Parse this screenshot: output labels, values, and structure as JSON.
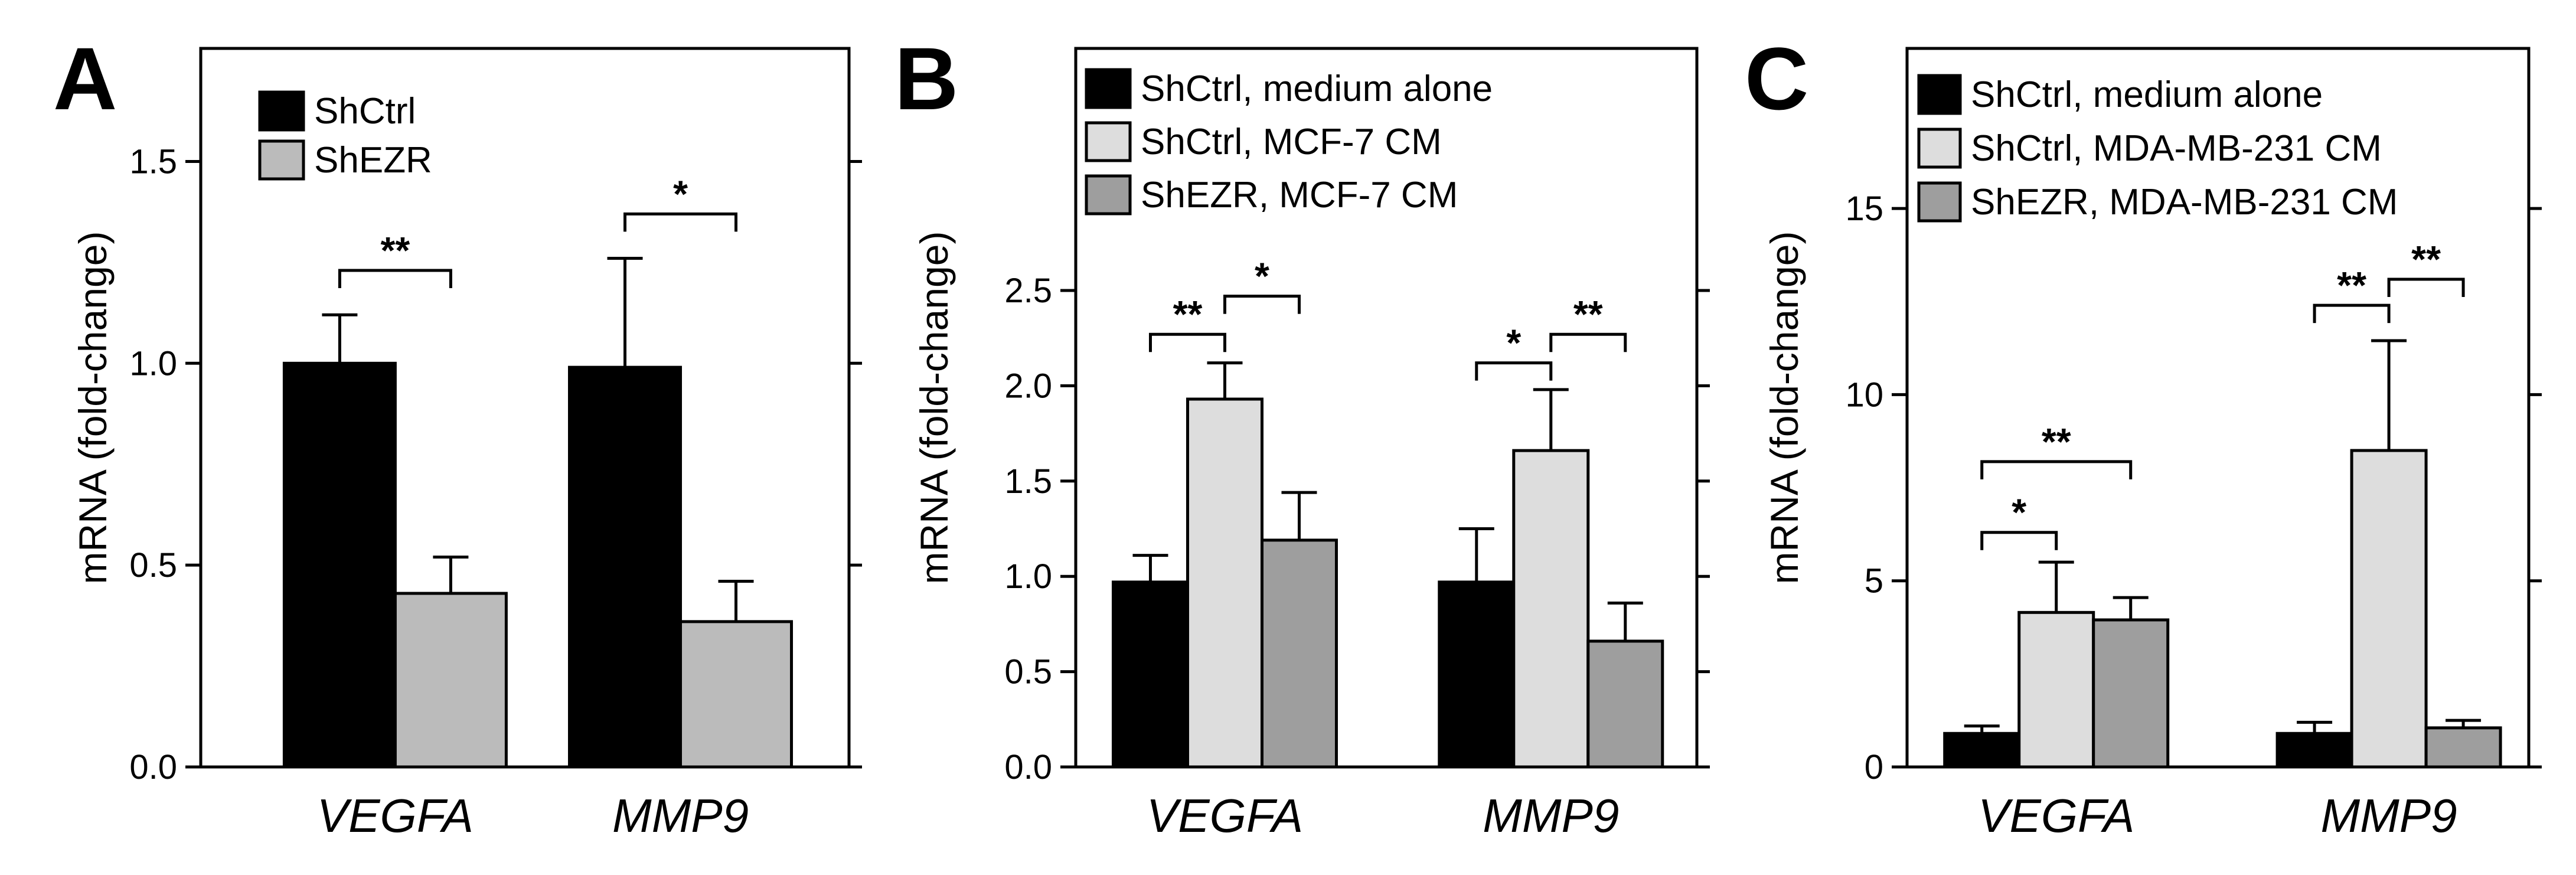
{
  "chart_data": [
    {
      "panel": "A",
      "type": "bar",
      "ylabel": "mRNA (fold-change)",
      "categories": [
        "VEGFA",
        "MMP9"
      ],
      "ylim": [
        0,
        1.78
      ],
      "yticks": [
        "0.0",
        "0.5",
        "1.0",
        "1.5"
      ],
      "legend_position": "top-left",
      "series": [
        {
          "name": "ShCtrl",
          "color": "#000000",
          "values": [
            1.0,
            0.99
          ],
          "errors": [
            0.12,
            0.27
          ]
        },
        {
          "name": "ShEZR",
          "color": "#bbbbbb",
          "values": [
            0.43,
            0.36
          ],
          "errors": [
            0.09,
            0.1
          ]
        }
      ],
      "significance": [
        {
          "category": 0,
          "from": 0,
          "to": 1,
          "label": "**",
          "y": 1.23
        },
        {
          "category": 1,
          "from": 0,
          "to": 1,
          "label": "*",
          "y": 1.37
        }
      ]
    },
    {
      "panel": "B",
      "type": "bar",
      "ylabel": "mRNA (fold-change)",
      "categories": [
        "VEGFA",
        "MMP9"
      ],
      "ylim": [
        0,
        3.77
      ],
      "yticks": [
        "0.0",
        "0.5",
        "1.0",
        "1.5",
        "2.0",
        "2.5"
      ],
      "legend_position": "top-left",
      "series": [
        {
          "name": "ShCtrl, medium alone",
          "color": "#000000",
          "values": [
            0.97,
            0.97
          ],
          "errors": [
            0.14,
            0.28
          ]
        },
        {
          "name": "ShCtrl, MCF-7 CM",
          "color": "#dddddd",
          "values": [
            1.93,
            1.66
          ],
          "errors": [
            0.19,
            0.32
          ]
        },
        {
          "name": "ShEZR, MCF-7 CM",
          "color": "#9e9e9e",
          "values": [
            1.19,
            0.66
          ],
          "errors": [
            0.25,
            0.2
          ]
        }
      ],
      "significance": [
        {
          "category": 0,
          "from": 0,
          "to": 1,
          "label": "**",
          "y": 2.27
        },
        {
          "category": 0,
          "from": 1,
          "to": 2,
          "label": "*",
          "y": 2.47
        },
        {
          "category": 1,
          "from": 0,
          "to": 1,
          "label": "*",
          "y": 2.12
        },
        {
          "category": 1,
          "from": 1,
          "to": 2,
          "label": "**",
          "y": 2.27
        }
      ]
    },
    {
      "panel": "C",
      "type": "bar",
      "ylabel": "mRNA (fold-change)",
      "categories": [
        "VEGFA",
        "MMP9"
      ],
      "ylim": [
        0,
        19.3
      ],
      "yticks": [
        "0",
        "5",
        "10",
        "15"
      ],
      "legend_position": "top-left",
      "series": [
        {
          "name": "ShCtrl, medium alone",
          "color": "#000000",
          "values": [
            0.9,
            0.9
          ],
          "errors": [
            0.2,
            0.3
          ]
        },
        {
          "name": "ShCtrl, MDA-MB-231 CM",
          "color": "#dddddd",
          "values": [
            4.15,
            8.5
          ],
          "errors": [
            1.35,
            2.95
          ]
        },
        {
          "name": "ShEZR, MDA-MB-231 CM",
          "color": "#9e9e9e",
          "values": [
            3.95,
            1.05
          ],
          "errors": [
            0.6,
            0.2
          ]
        }
      ],
      "significance": [
        {
          "category": 0,
          "from": 0,
          "to": 1,
          "label": "*",
          "y": 6.3
        },
        {
          "category": 0,
          "from": 0,
          "to": 2,
          "label": "**",
          "y": 8.2
        },
        {
          "category": 1,
          "from": 0,
          "to": 1,
          "label": "**",
          "y": 12.4
        },
        {
          "category": 1,
          "from": 1,
          "to": 2,
          "label": "**",
          "y": 13.1
        }
      ]
    }
  ]
}
